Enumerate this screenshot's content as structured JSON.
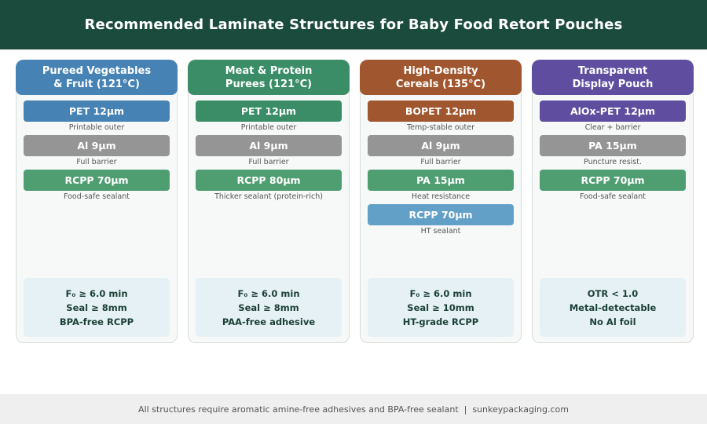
{
  "header": {
    "title": "Recommended Laminate Structures for Baby Food Retort Pouches"
  },
  "colors": {
    "header_bg": "#1b4b3c",
    "pet_blue": "#4682b4",
    "green": "#3a8d66",
    "sealant_green": "#4f9e72",
    "gray": "#959595",
    "brown": "#a0562e",
    "purple": "#5f4ea0",
    "light_blue": "#62a0c8"
  },
  "columns": [
    {
      "title_line1": "Pureed Vegetables",
      "title_line2": "& Fruit (121°C)",
      "layers": [
        {
          "label": "PET 12µm",
          "note": "Printable outer"
        },
        {
          "label": "Al 9µm",
          "note": "Full barrier"
        },
        {
          "label": "RCPP 70µm",
          "note": "Food-safe sealant"
        }
      ],
      "specs": [
        "F₀ ≥ 6.0 min",
        "Seal ≥ 8mm",
        "BPA-free RCPP"
      ]
    },
    {
      "title_line1": "Meat & Protein",
      "title_line2": "Purees (121°C)",
      "layers": [
        {
          "label": "PET 12µm",
          "note": "Printable outer"
        },
        {
          "label": "Al 9µm",
          "note": "Full barrier"
        },
        {
          "label": "RCPP 80µm",
          "note": "Thicker sealant (protein-rich)"
        }
      ],
      "specs": [
        "F₀ ≥ 6.0 min",
        "Seal ≥ 8mm",
        "PAA-free adhesive"
      ]
    },
    {
      "title_line1": "High-Density",
      "title_line2": "Cereals (135°C)",
      "layers": [
        {
          "label": "BOPET 12µm",
          "note": "Temp-stable outer"
        },
        {
          "label": "Al 9µm",
          "note": "Full barrier"
        },
        {
          "label": "PA 15µm",
          "note": "Heat resistance"
        },
        {
          "label": "RCPP 70µm",
          "note": "HT sealant"
        }
      ],
      "specs": [
        "F₀ ≥ 6.0 min",
        "Seal ≥ 10mm",
        "HT-grade RCPP"
      ]
    },
    {
      "title_line1": "Transparent",
      "title_line2": "Display Pouch",
      "layers": [
        {
          "label": "AlOx-PET 12µm",
          "note": "Clear + barrier"
        },
        {
          "label": "PA 15µm",
          "note": "Puncture resist."
        },
        {
          "label": "RCPP 70µm",
          "note": "Food-safe sealant"
        }
      ],
      "specs": [
        "OTR < 1.0",
        "Metal-detectable",
        "No Al foil"
      ]
    }
  ],
  "footer": {
    "text": "All structures require aromatic amine-free adhesives and BPA-free sealant  |  sunkeypackaging.com"
  }
}
